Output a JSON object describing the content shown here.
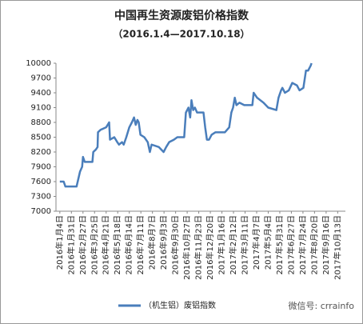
{
  "chart_data": {
    "type": "line",
    "title": "中国再生资源废铝价格指数",
    "subtitle": "（2016.1.4—2017.10.18）",
    "annotation": "微信号: crrainfo",
    "xlim": [
      -9,
      666
    ],
    "ylim": [
      7000,
      10000
    ],
    "yticks": [
      7000,
      7300,
      7600,
      7900,
      8200,
      8500,
      8800,
      9100,
      9400,
      9700,
      10000
    ],
    "xticks": [
      {
        "value": 0,
        "label": "2016年1月4日"
      },
      {
        "value": 27,
        "label": "2016年1月31日"
      },
      {
        "value": 54,
        "label": "2016年2月27日"
      },
      {
        "value": 81,
        "label": "2016年3月25日"
      },
      {
        "value": 108,
        "label": "2016年4月21日"
      },
      {
        "value": 135,
        "label": "2016年5月18日"
      },
      {
        "value": 162,
        "label": "2016年6月14日"
      },
      {
        "value": 189,
        "label": "2016年7月11日"
      },
      {
        "value": 216,
        "label": "2016年8月7日"
      },
      {
        "value": 243,
        "label": "2016年9月3日"
      },
      {
        "value": 270,
        "label": "2016年9月30日"
      },
      {
        "value": 297,
        "label": "2016年10月27日"
      },
      {
        "value": 324,
        "label": "2016年11月23日"
      },
      {
        "value": 351,
        "label": "2016年12月20日"
      },
      {
        "value": 378,
        "label": "2017年1月16日"
      },
      {
        "value": 405,
        "label": "2017年2月12日"
      },
      {
        "value": 432,
        "label": "2017年3月11日"
      },
      {
        "value": 459,
        "label": "2017年4月7日"
      },
      {
        "value": 486,
        "label": "2017年5月4日"
      },
      {
        "value": 513,
        "label": "2017年5月31日"
      },
      {
        "value": 540,
        "label": "2017年6月27日"
      },
      {
        "value": 567,
        "label": "2017年7月24日"
      },
      {
        "value": 594,
        "label": "2017年8月20日"
      },
      {
        "value": 621,
        "label": "2017年9月16日"
      },
      {
        "value": 648,
        "label": "2017年10月13日"
      }
    ],
    "grid": false,
    "x": [
      0,
      9,
      13,
      39,
      47,
      52,
      54,
      58,
      76,
      78,
      84,
      88,
      89,
      95,
      108,
      115,
      117,
      127,
      134,
      138,
      145,
      149,
      155,
      162,
      168,
      173,
      177,
      181,
      184,
      188,
      197,
      205,
      210,
      214,
      231,
      242,
      248,
      255,
      266,
      274,
      290,
      294,
      300,
      304,
      307,
      311,
      315,
      320,
      335,
      339,
      343,
      348,
      354,
      363,
      385,
      395,
      400,
      404,
      408,
      412,
      419,
      430,
      449,
      452,
      460,
      475,
      486,
      505,
      510,
      516,
      519,
      525,
      534,
      542,
      553,
      559,
      568,
      574,
      579,
      585,
      587
    ],
    "series": [
      {
        "name": "（机生铝）废铝指数",
        "color": "#4a7ebb",
        "values": [
          7600,
          7600,
          7500,
          7500,
          7800,
          7900,
          8100,
          8000,
          8000,
          8200,
          8250,
          8300,
          8600,
          8650,
          8700,
          8800,
          8450,
          8500,
          8400,
          8350,
          8400,
          8350,
          8500,
          8700,
          8800,
          8900,
          8750,
          8850,
          8800,
          8550,
          8500,
          8400,
          8200,
          8350,
          8300,
          8200,
          8300,
          8400,
          8450,
          8500,
          8500,
          9000,
          9100,
          8900,
          9250,
          9050,
          9100,
          9000,
          9000,
          8700,
          8450,
          8450,
          8550,
          8600,
          8600,
          8700,
          9000,
          9100,
          9300,
          9150,
          9200,
          9150,
          9150,
          9400,
          9300,
          9200,
          9100,
          9050,
          9300,
          9450,
          9500,
          9400,
          9450,
          9600,
          9550,
          9450,
          9500,
          9850,
          9850,
          9950,
          10000
        ]
      }
    ]
  }
}
